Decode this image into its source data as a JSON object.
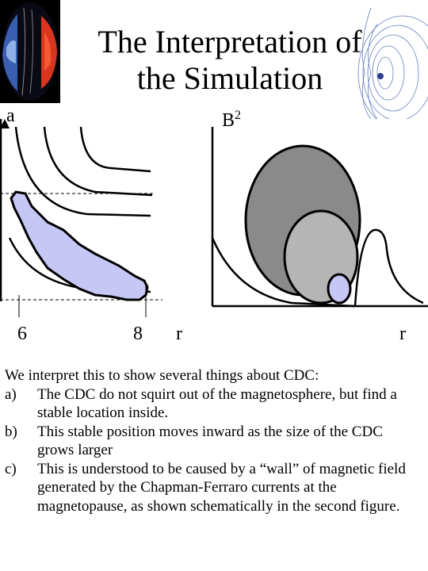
{
  "title_line1": "The Interpretation of",
  "title_line2": "the Simulation",
  "fig1": {
    "ylabel": "a",
    "tick1": "6",
    "tick2": "8",
    "xlabel": "r"
  },
  "fig2": {
    "ylabel_base": "B",
    "ylabel_sup": "2",
    "xlabel": "r"
  },
  "intro": "We interpret this to show several things about CDC:",
  "points": [
    {
      "marker": "a)",
      "text": "The CDC do not squirt out of the magnetosphere, but find a stable location inside."
    },
    {
      "marker": "b)",
      "text": "This stable position moves inward as the size of the CDC grows larger"
    },
    {
      "marker": "c)",
      "text": "This is understood to be caused by a “wall” of magnetic field generated by the Chapman-Ferraro currents at the magnetopause, as shown schematically in the second figure."
    }
  ]
}
